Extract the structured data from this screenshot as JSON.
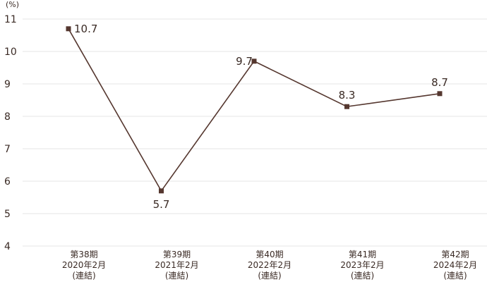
{
  "chart_data": {
    "type": "line",
    "unit_label": "(%)",
    "categories": [
      [
        "第38期",
        "2020年2月",
        "(連結)"
      ],
      [
        "第39期",
        "2021年2月",
        "(連結)"
      ],
      [
        "第40期",
        "2022年2月",
        "(連結)"
      ],
      [
        "第41期",
        "2023年2月",
        "(連結)"
      ],
      [
        "第42期",
        "2024年2月",
        "(連結)"
      ]
    ],
    "values": [
      10.7,
      5.7,
      9.7,
      8.3,
      8.7
    ],
    "data_labels": [
      "10.7",
      "5.7",
      "9.7",
      "8.3",
      "8.7"
    ],
    "yticks": [
      "4",
      "5",
      "6",
      "7",
      "8",
      "9",
      "10",
      "11"
    ],
    "ylim": [
      4,
      11
    ],
    "grid": true,
    "legend": "none",
    "colors": {
      "line": "#55372f",
      "text": "#3a2a24",
      "grid": "#e4e4e4"
    }
  }
}
